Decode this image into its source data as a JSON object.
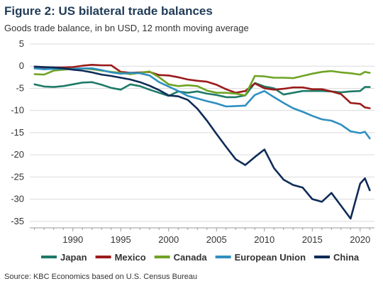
{
  "title": "Figure 2: US bilateral trade balances",
  "subtitle": "Goods trade balance, in bn USD, 12 month moving average",
  "source": "Source: KBC Economics based on U.S. Census Bureau",
  "chart_data": {
    "type": "line",
    "title": "Figure 2: US bilateral trade balances",
    "subtitle": "Goods trade balance, in bn USD, 12 month moving average",
    "xlabel": "",
    "ylabel": "",
    "xlim": [
      1985.5,
      2021.5
    ],
    "ylim": [
      -36,
      5
    ],
    "x_ticks": [
      1990,
      1995,
      2000,
      2005,
      2010,
      2015,
      2020
    ],
    "x_tick_labels": [
      "1990",
      "1995",
      "2000",
      "2005",
      "2010",
      "2015",
      "2020"
    ],
    "y_ticks": [
      5,
      0,
      -5,
      -10,
      -15,
      -20,
      -25,
      -30,
      -35
    ],
    "y_tick_labels": [
      "5",
      "0",
      "-5",
      "-10",
      "-15",
      "-20",
      "-25",
      "-30",
      "-35"
    ],
    "grid": "horizontal",
    "legend_position": "bottom",
    "series": [
      {
        "name": "Japan",
        "color": "#1e7a68",
        "points": [
          [
            1986,
            -4.1
          ],
          [
            1987,
            -4.6
          ],
          [
            1988,
            -4.7
          ],
          [
            1989,
            -4.5
          ],
          [
            1990,
            -4.1
          ],
          [
            1991,
            -3.7
          ],
          [
            1992,
            -3.6
          ],
          [
            1993,
            -4.2
          ],
          [
            1994,
            -4.9
          ],
          [
            1995,
            -5.3
          ],
          [
            1996,
            -4.1
          ],
          [
            1997,
            -4.5
          ],
          [
            1998,
            -5.3
          ],
          [
            1999,
            -6.0
          ],
          [
            2000,
            -6.7
          ],
          [
            2001,
            -5.7
          ],
          [
            2002,
            -6.0
          ],
          [
            2003,
            -5.7
          ],
          [
            2004,
            -6.2
          ],
          [
            2005,
            -6.5
          ],
          [
            2006,
            -7.0
          ],
          [
            2007,
            -7.0
          ],
          [
            2008,
            -6.6
          ],
          [
            2009,
            -3.8
          ],
          [
            2010,
            -4.6
          ],
          [
            2011,
            -5.0
          ],
          [
            2012,
            -6.4
          ],
          [
            2013,
            -6.0
          ],
          [
            2014,
            -5.6
          ],
          [
            2015,
            -5.6
          ],
          [
            2016,
            -5.6
          ],
          [
            2017,
            -5.7
          ],
          [
            2018,
            -5.9
          ],
          [
            2019,
            -5.7
          ],
          [
            2020,
            -5.6
          ],
          [
            2020.5,
            -4.7
          ],
          [
            2021,
            -4.7
          ]
        ]
      },
      {
        "name": "Mexico",
        "color": "#9b1b1b",
        "points": [
          [
            1986,
            -0.5
          ],
          [
            1987,
            -0.4
          ],
          [
            1988,
            -0.3
          ],
          [
            1989,
            -0.3
          ],
          [
            1990,
            -0.2
          ],
          [
            1991,
            0.1
          ],
          [
            1992,
            0.3
          ],
          [
            1993,
            0.2
          ],
          [
            1994,
            0.2
          ],
          [
            1995,
            -1.3
          ],
          [
            1996,
            -1.5
          ],
          [
            1997,
            -1.4
          ],
          [
            1998,
            -1.3
          ],
          [
            1999,
            -2.0
          ],
          [
            2000,
            -2.1
          ],
          [
            2001,
            -2.5
          ],
          [
            2002,
            -3.0
          ],
          [
            2003,
            -3.3
          ],
          [
            2004,
            -3.5
          ],
          [
            2005,
            -4.2
          ],
          [
            2006,
            -5.2
          ],
          [
            2007,
            -6.0
          ],
          [
            2008,
            -5.6
          ],
          [
            2009,
            -3.9
          ],
          [
            2010,
            -5.0
          ],
          [
            2011,
            -5.3
          ],
          [
            2012,
            -5.1
          ],
          [
            2013,
            -4.8
          ],
          [
            2014,
            -4.8
          ],
          [
            2015,
            -5.2
          ],
          [
            2016,
            -5.2
          ],
          [
            2017,
            -5.7
          ],
          [
            2018,
            -6.3
          ],
          [
            2019,
            -8.3
          ],
          [
            2020,
            -8.5
          ],
          [
            2020.5,
            -9.3
          ],
          [
            2021,
            -9.5
          ]
        ]
      },
      {
        "name": "Canada",
        "color": "#6fa324",
        "points": [
          [
            1986,
            -1.8
          ],
          [
            1987,
            -1.9
          ],
          [
            1988,
            -1.0
          ],
          [
            1989,
            -0.8
          ],
          [
            1990,
            -0.6
          ],
          [
            1991,
            -0.5
          ],
          [
            1992,
            -0.7
          ],
          [
            1993,
            -1.0
          ],
          [
            1994,
            -1.3
          ],
          [
            1995,
            -1.5
          ],
          [
            1996,
            -1.8
          ],
          [
            1997,
            -1.5
          ],
          [
            1998,
            -1.2
          ],
          [
            1999,
            -2.5
          ],
          [
            2000,
            -4.1
          ],
          [
            2001,
            -4.5
          ],
          [
            2002,
            -4.3
          ],
          [
            2003,
            -4.5
          ],
          [
            2004,
            -5.5
          ],
          [
            2005,
            -6.0
          ],
          [
            2006,
            -6.0
          ],
          [
            2007,
            -6.2
          ],
          [
            2008,
            -6.6
          ],
          [
            2009,
            -2.2
          ],
          [
            2010,
            -2.3
          ],
          [
            2011,
            -2.6
          ],
          [
            2012,
            -2.6
          ],
          [
            2013,
            -2.7
          ],
          [
            2014,
            -2.2
          ],
          [
            2015,
            -1.7
          ],
          [
            2016,
            -1.3
          ],
          [
            2017,
            -1.1
          ],
          [
            2018,
            -1.4
          ],
          [
            2019,
            -1.6
          ],
          [
            2020,
            -1.9
          ],
          [
            2020.5,
            -1.3
          ],
          [
            2021,
            -1.5
          ]
        ]
      },
      {
        "name": "European Union",
        "color": "#2e8fc0",
        "points": [
          [
            1986,
            -0.5
          ],
          [
            1987,
            -0.7
          ],
          [
            1988,
            -0.6
          ],
          [
            1989,
            -0.6
          ],
          [
            1990,
            -0.6
          ],
          [
            1991,
            -0.5
          ],
          [
            1992,
            -0.5
          ],
          [
            1993,
            -0.9
          ],
          [
            1994,
            -1.4
          ],
          [
            1995,
            -1.7
          ],
          [
            1996,
            -1.5
          ],
          [
            1997,
            -1.6
          ],
          [
            1998,
            -2.1
          ],
          [
            1999,
            -3.6
          ],
          [
            2000,
            -4.6
          ],
          [
            2001,
            -5.6
          ],
          [
            2002,
            -6.7
          ],
          [
            2003,
            -7.3
          ],
          [
            2004,
            -7.9
          ],
          [
            2005,
            -8.4
          ],
          [
            2006,
            -9.1
          ],
          [
            2007,
            -9.0
          ],
          [
            2008,
            -8.9
          ],
          [
            2009,
            -6.5
          ],
          [
            2010,
            -5.6
          ],
          [
            2011,
            -7.0
          ],
          [
            2012,
            -8.3
          ],
          [
            2013,
            -9.5
          ],
          [
            2014,
            -10.3
          ],
          [
            2015,
            -11.2
          ],
          [
            2016,
            -12.0
          ],
          [
            2017,
            -12.3
          ],
          [
            2018,
            -13.2
          ],
          [
            2019,
            -14.7
          ],
          [
            2020,
            -15.1
          ],
          [
            2020.5,
            -14.8
          ],
          [
            2021,
            -16.3
          ]
        ]
      },
      {
        "name": "China",
        "color": "#0f2b57",
        "points": [
          [
            1986,
            -0.1
          ],
          [
            1987,
            -0.2
          ],
          [
            1988,
            -0.3
          ],
          [
            1989,
            -0.5
          ],
          [
            1990,
            -0.8
          ],
          [
            1991,
            -1.0
          ],
          [
            1992,
            -1.4
          ],
          [
            1993,
            -1.9
          ],
          [
            1994,
            -2.2
          ],
          [
            1995,
            -2.6
          ],
          [
            1996,
            -3.0
          ],
          [
            1997,
            -3.6
          ],
          [
            1998,
            -4.4
          ],
          [
            1999,
            -5.4
          ],
          [
            2000,
            -6.6
          ],
          [
            2001,
            -6.8
          ],
          [
            2002,
            -7.6
          ],
          [
            2003,
            -9.6
          ],
          [
            2004,
            -12.3
          ],
          [
            2005,
            -15.3
          ],
          [
            2006,
            -18.2
          ],
          [
            2007,
            -21.0
          ],
          [
            2008,
            -22.3
          ],
          [
            2009,
            -20.5
          ],
          [
            2010,
            -18.8
          ],
          [
            2011,
            -23.0
          ],
          [
            2012,
            -25.6
          ],
          [
            2013,
            -26.8
          ],
          [
            2014,
            -27.4
          ],
          [
            2015,
            -30.0
          ],
          [
            2016,
            -30.6
          ],
          [
            2017,
            -28.6
          ],
          [
            2018,
            -31.5
          ],
          [
            2019,
            -34.4
          ],
          [
            2020,
            -26.5
          ],
          [
            2020.5,
            -25.3
          ],
          [
            2021,
            -28.0
          ]
        ]
      }
    ]
  }
}
